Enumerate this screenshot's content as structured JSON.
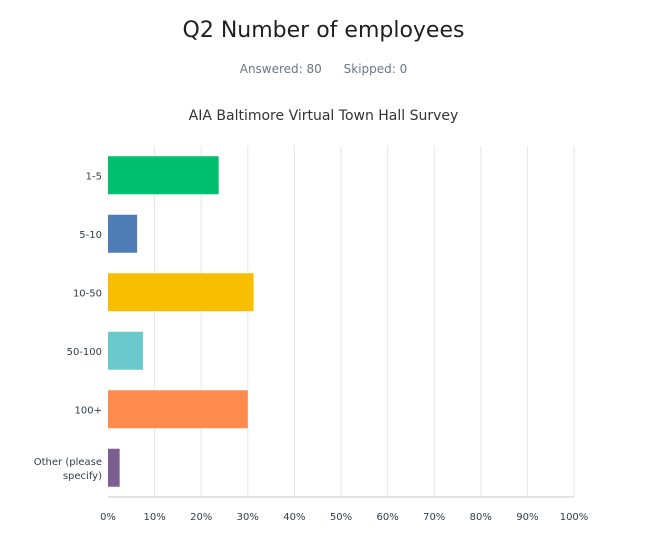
{
  "header": {
    "question": "Q2 Number of employees",
    "answered": "Answered: 80",
    "skipped": "Skipped: 0"
  },
  "chart_data": {
    "type": "bar",
    "orientation": "horizontal",
    "title": "AIA Baltimore Virtual Town Hall Survey",
    "categories": [
      "1-5",
      "5-10",
      "10-50",
      "50-100",
      "100+",
      "Other (please specify)"
    ],
    "category_lines": [
      [
        "1-5"
      ],
      [
        "5-10"
      ],
      [
        "10-50"
      ],
      [
        "50-100"
      ],
      [
        "100+"
      ],
      [
        "Other (please",
        "specify)"
      ]
    ],
    "values": [
      23.75,
      6.25,
      31.25,
      7.5,
      30.0,
      2.5
    ],
    "colors": [
      "#00bf6f",
      "#507cb6",
      "#f9be00",
      "#6bc8cd",
      "#ff8b4f",
      "#7d5e90"
    ],
    "xlim": [
      0,
      100
    ],
    "xticks": [
      "0%",
      "10%",
      "20%",
      "30%",
      "40%",
      "50%",
      "60%",
      "70%",
      "80%",
      "90%",
      "100%"
    ],
    "grid": true,
    "xlabel": "",
    "ylabel": ""
  }
}
